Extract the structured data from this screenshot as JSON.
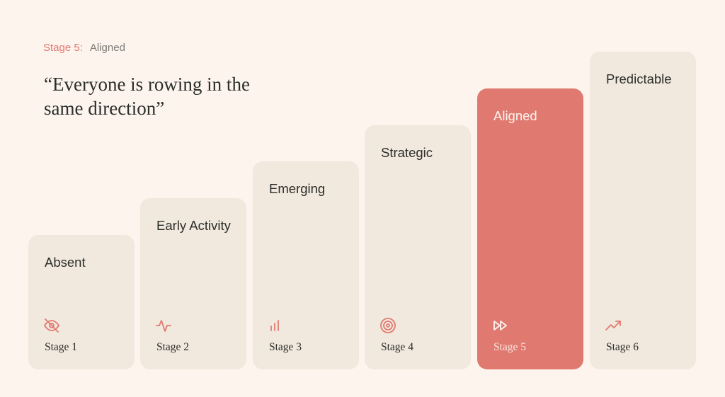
{
  "header": {
    "stage_number": "Stage 5:",
    "stage_name": "Aligned",
    "quote": "“Everyone is rowing in the same direction”"
  },
  "stages": [
    {
      "title": "Absent",
      "label": "Stage 1"
    },
    {
      "title": "Early Activity",
      "label": "Stage 2"
    },
    {
      "title": "Emerging",
      "label": "Stage 3"
    },
    {
      "title": "Strategic",
      "label": "Stage 4"
    },
    {
      "title": "Aligned",
      "label": "Stage 5"
    },
    {
      "title": "Predictable",
      "label": "Stage 6"
    }
  ]
}
